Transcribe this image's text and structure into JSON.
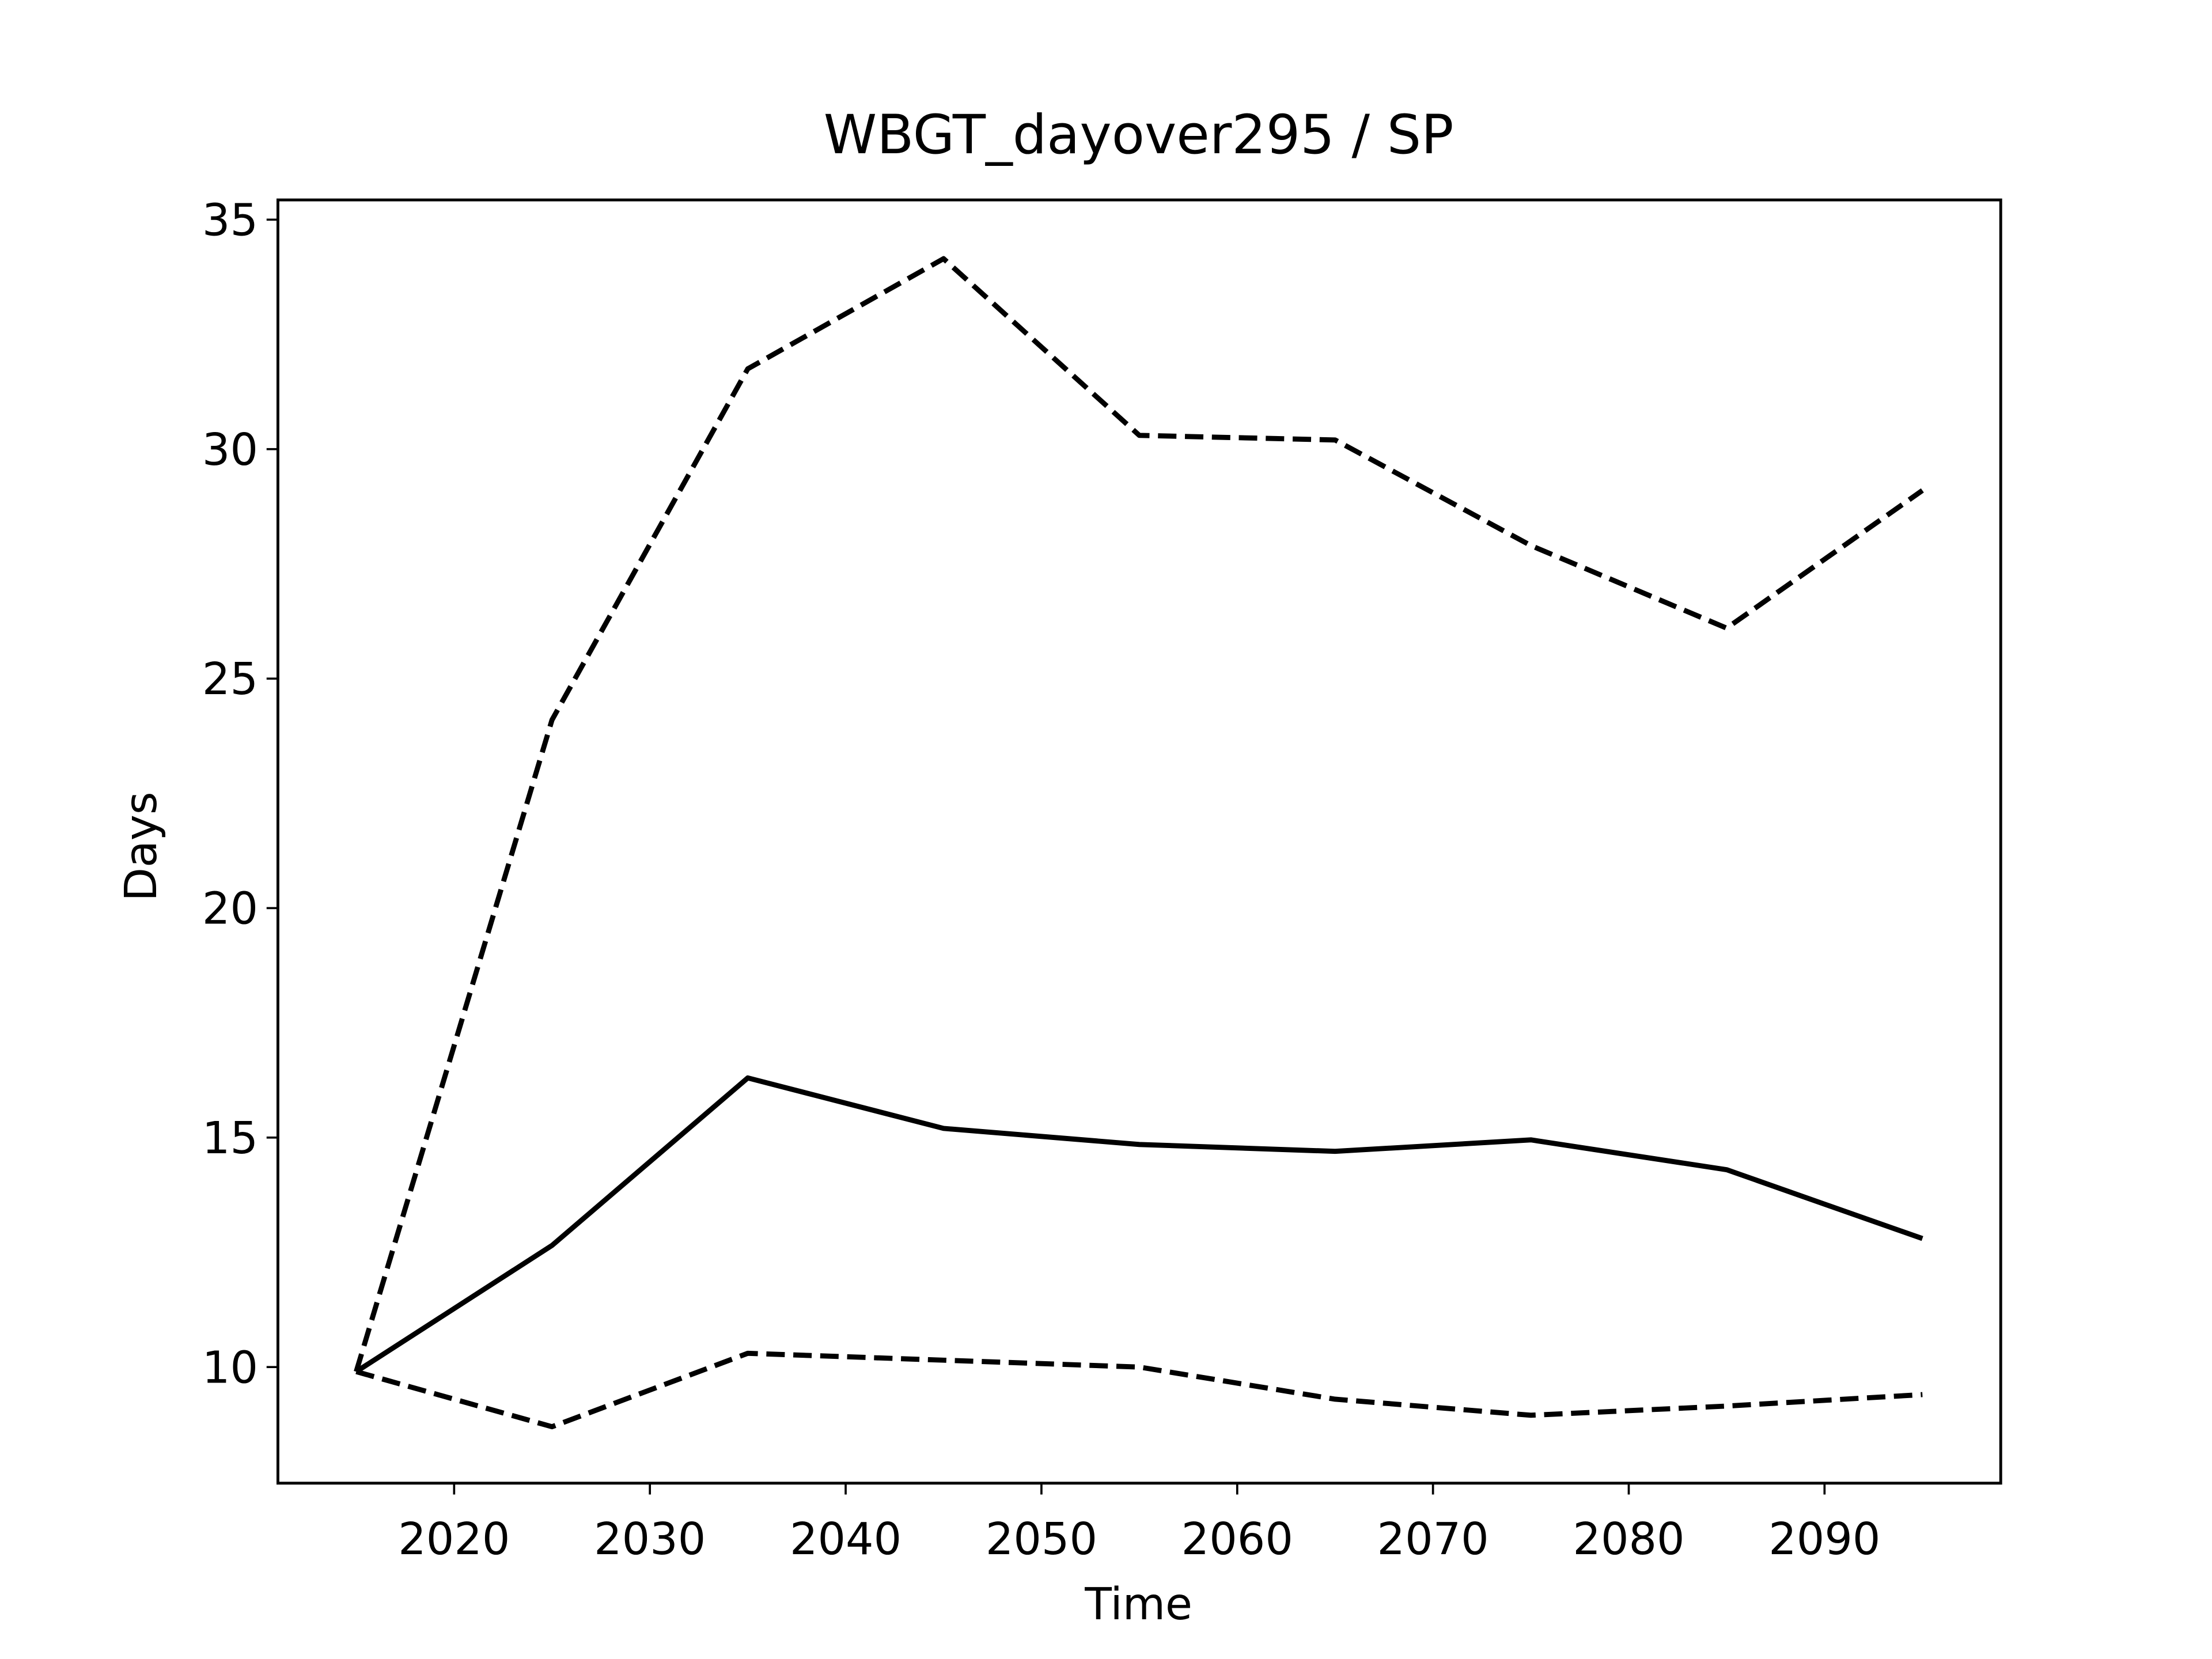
{
  "chart_data": {
    "type": "line",
    "title": "WBGT_dayover295 / SP",
    "x_label": "Time",
    "y_label": "Days",
    "x": [
      2015,
      2025,
      2035,
      2045,
      2055,
      2065,
      2075,
      2085,
      2095
    ],
    "series": [
      {
        "color": "#000000",
        "dash": false,
        "values": [
          9.9,
          12.65,
          16.3,
          15.2,
          14.85,
          14.7,
          14.95,
          14.3,
          12.8
        ]
      },
      {
        "color": "#000000",
        "dash": true,
        "values": [
          9.9,
          24.1,
          31.75,
          34.15,
          30.3,
          30.2,
          27.9,
          26.1,
          29.1
        ]
      },
      {
        "color": "#000000",
        "dash": true,
        "values": [
          9.9,
          8.7,
          10.3,
          10.15,
          10.0,
          9.3,
          8.95,
          9.15,
          9.4
        ]
      }
    ],
    "xlim": [
      2011,
      2099
    ],
    "ylim": [
      7.47,
      35.43
    ],
    "xticks": [
      2020,
      2030,
      2040,
      2050,
      2060,
      2070,
      2080,
      2090
    ],
    "yticks": [
      10,
      15,
      20,
      25,
      30,
      35
    ],
    "grid": false
  }
}
